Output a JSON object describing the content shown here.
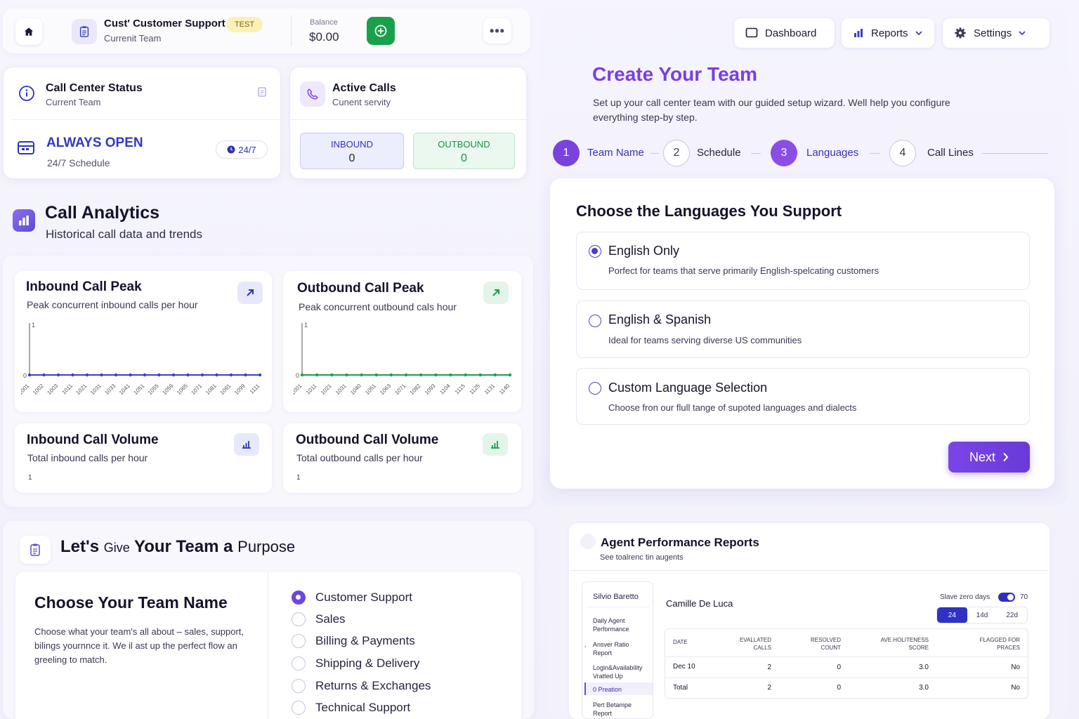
{
  "topbar": {
    "team_name": "Cust' Customer Support",
    "team_sub": "Currenit Team",
    "badge": "TEST",
    "balance_label": "Balance",
    "balance_value": "$0.00",
    "more": "•••"
  },
  "nav": {
    "dashboard": "Dashboard",
    "reports": "Reports",
    "settings": "Settings"
  },
  "status": {
    "title": "Call Center Status",
    "sub": "Current Team",
    "state": "ALWAYS OPEN",
    "schedule": "24/7 Schedule",
    "pill": "24/7"
  },
  "active": {
    "title": "Active Calls",
    "sub": "Cunent servity",
    "inbound_label": "INBOUND",
    "inbound_value": "0",
    "outbound_label": "OUTBOUND",
    "outbound_value": "0"
  },
  "analytics": {
    "title": "Call Analytics",
    "sub": "Historical call data and trends",
    "inbound_peak_title": "Inbound Call Peak",
    "inbound_peak_sub": "Peak concurrent inbound calls per hour",
    "outbound_peak_title": "Outbound Call Peak",
    "outbound_peak_sub": "Peak concurrent outbound cals hour",
    "inbound_vol_title": "Inbound Call Volume",
    "inbound_vol_sub": "Total inbound calls per hour",
    "outbound_vol_title": "Outbound Call Volume",
    "outbound_vol_sub": "Total outbound calls per hour",
    "vol_tick": "1",
    "colors": {
      "inbound": "#3a3fd0",
      "outbound": "#1aa04c"
    }
  },
  "chart_data": [
    {
      "type": "line",
      "title": "Inbound Call Peak",
      "x": [
        "1001",
        "1002",
        "1003",
        "1011",
        "1021",
        "1031",
        "1033",
        "1041",
        "1051",
        "1055",
        "1059",
        "1065",
        "1071",
        "1081",
        "1091",
        "1099",
        "1111"
      ],
      "y_ticks": [
        "0",
        "1"
      ],
      "ylim": [
        0,
        1
      ],
      "series": [
        {
          "values": [
            0,
            0,
            0,
            0,
            0,
            0,
            0,
            0,
            0,
            0,
            0,
            0,
            0,
            0,
            0,
            0,
            0
          ]
        }
      ]
    },
    {
      "type": "line",
      "title": "Outbound Call Peak",
      "x": [
        "1001",
        "1011",
        "1021",
        "1031",
        "1040",
        "1051",
        "1063",
        "1071",
        "1082",
        "1093",
        "1104",
        "1115",
        "1125",
        "1131",
        "1140"
      ],
      "y_ticks": [
        "0",
        "1"
      ],
      "ylim": [
        0,
        1
      ],
      "series": [
        {
          "values": [
            0,
            0,
            0,
            0,
            0,
            0,
            0,
            0,
            0,
            0,
            0,
            0,
            0,
            0,
            0
          ]
        }
      ]
    }
  ],
  "wizard": {
    "title": "Create Your Team",
    "desc": "Set up your call center team with our guided setup wizard. Well help you configure everything step-by step.",
    "steps": [
      {
        "num": "1",
        "label": "Team Name"
      },
      {
        "num": "2",
        "label": "Schedule"
      },
      {
        "num": "3",
        "label": "Languages"
      },
      {
        "num": "4",
        "label": "Call Lines"
      }
    ],
    "lang_title": "Choose the Languages You Support",
    "options": [
      {
        "title": "English Only",
        "desc": "Porfect for teams that serve primarily English-spelcating customers"
      },
      {
        "title": "English & Spanish",
        "desc": "Ideal for teams serving diverse US communities"
      },
      {
        "title": "Custom Language Selection",
        "desc": "Choose fron our flull tange of supoted languages and dialects"
      }
    ],
    "next": "Next"
  },
  "purpose": {
    "title_a": "Let's",
    "title_b": "Give",
    "title_c": "Your Team a",
    "title_d": "Purpose",
    "name_title": "Choose Your Team Name",
    "name_desc": "Choose what your team's all about – sales, support, bilings yournnce it. We il ast up the perfect flow an greeling to match.",
    "categories": [
      "Customer Support",
      "Sales",
      "Billing & Payments",
      "Shipping & Delivery",
      "Returns & Exchanges",
      "Technical Support"
    ]
  },
  "agent": {
    "title": "Agent Performance Reports",
    "sub": "See toalrenc tin augents",
    "side_head": "Silvio Baretto",
    "side_items": [
      "Daily Agent Performance",
      "Ansver Ratio Report",
      "Login&Availability Vratted Up",
      "0 Preation",
      "Pert Betampe Report"
    ],
    "name": "Camille De Luca",
    "toggle_label": "Slave zero days",
    "toggle_num": "70",
    "ranges": [
      "24",
      "14d",
      "22d"
    ],
    "headers": [
      "DATE",
      "EVALLATED CALLS",
      "RESOLVED COUNT",
      "AVE HOLITENESS SCORE",
      "FLAGGED FOR PRACES"
    ],
    "rows": [
      [
        "Dec 10",
        "2",
        "0",
        "3.0",
        "No"
      ],
      [
        "Total",
        "2",
        "0",
        "3.0",
        "No"
      ]
    ]
  }
}
